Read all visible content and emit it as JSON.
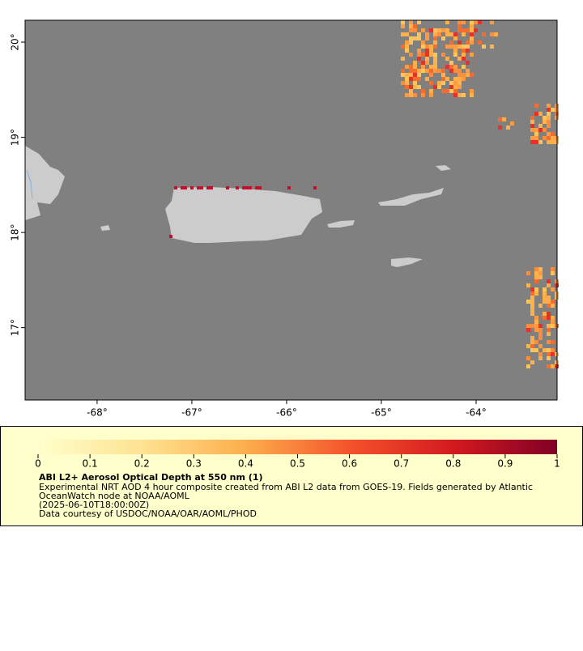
{
  "chart_data": {
    "type": "map",
    "xlim": [
      -68.76,
      -63.145
    ],
    "ylim": [
      16.24,
      20.23
    ],
    "xticks": [
      {
        "value": -68,
        "label": "-68°"
      },
      {
        "value": -67,
        "label": "-67°"
      },
      {
        "value": -66,
        "label": "-66°"
      },
      {
        "value": -65,
        "label": "-65°"
      },
      {
        "value": -64,
        "label": "-64°"
      }
    ],
    "yticks": [
      {
        "value": 17,
        "label": "17°"
      },
      {
        "value": 18,
        "label": "18°"
      },
      {
        "value": 19,
        "label": "19°"
      },
      {
        "value": 20,
        "label": "20°"
      }
    ],
    "colorbar": {
      "lim": [
        0,
        1
      ],
      "ticks": [
        0,
        0.1,
        0.2,
        0.3,
        0.4,
        0.5,
        0.6,
        0.7,
        0.8,
        0.9,
        1
      ]
    },
    "title": "ABI L2+ Aerosol Optical Depth at 550 nm (1)",
    "description": [
      "Experimental NRT AOD 4 hour composite created from ABI L2 data from GOES-19. Fields generated by Atlantic",
      "OceanWatch node at NOAA/AOML",
      "(2025-06-10T18:00:00Z)",
      "Data courtesy of USDOC/NOAA/OAR/AOML/PHOD"
    ]
  }
}
